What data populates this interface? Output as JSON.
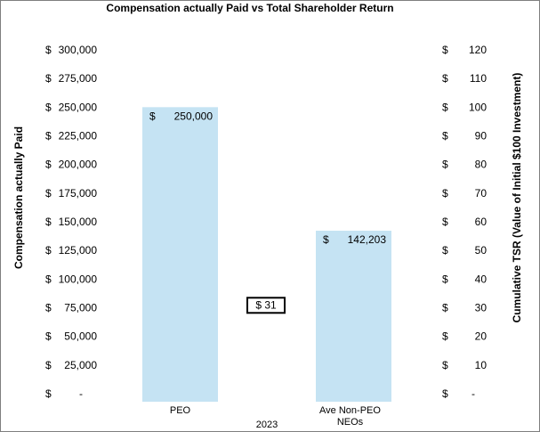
{
  "chart_data": {
    "type": "bar",
    "title": "Compensation actually Paid vs Total Shareholder Return",
    "ylabel": "Compensation actually Paid",
    "y2label": "Cumulative TSR  (Value of Initial $100 Investment)",
    "group_label": "2023",
    "categories": [
      "PEO",
      "Ave Non-PEO NEOs"
    ],
    "category_lines": [
      [
        "PEO"
      ],
      [
        "Ave Non-PEO",
        "NEOs"
      ]
    ],
    "values": [
      250000,
      142203
    ],
    "value_labels": [
      {
        "currency": "$",
        "amount": "250,000"
      },
      {
        "currency": "$",
        "amount": "142,203"
      }
    ],
    "bar_color": "#c5e3f3",
    "ylim": [
      0,
      300000
    ],
    "y_ticks": [
      {
        "value": 0,
        "currency": "$",
        "amount": "-"
      },
      {
        "value": 25000,
        "currency": "$",
        "amount": "25,000"
      },
      {
        "value": 50000,
        "currency": "$",
        "amount": "50,000"
      },
      {
        "value": 75000,
        "currency": "$",
        "amount": "75,000"
      },
      {
        "value": 100000,
        "currency": "$",
        "amount": "100,000"
      },
      {
        "value": 125000,
        "currency": "$",
        "amount": "125,000"
      },
      {
        "value": 150000,
        "currency": "$",
        "amount": "150,000"
      },
      {
        "value": 175000,
        "currency": "$",
        "amount": "175,000"
      },
      {
        "value": 200000,
        "currency": "$",
        "amount": "200,000"
      },
      {
        "value": 225000,
        "currency": "$",
        "amount": "225,000"
      },
      {
        "value": 250000,
        "currency": "$",
        "amount": "250,000"
      },
      {
        "value": 275000,
        "currency": "$",
        "amount": "275,000"
      },
      {
        "value": 300000,
        "currency": "$",
        "amount": "300,000"
      }
    ],
    "y2lim": [
      0,
      120
    ],
    "y2_ticks": [
      {
        "value": 0,
        "currency": "$",
        "amount": "-"
      },
      {
        "value": 10,
        "currency": "$",
        "amount": "10"
      },
      {
        "value": 20,
        "currency": "$",
        "amount": "20"
      },
      {
        "value": 30,
        "currency": "$",
        "amount": "30"
      },
      {
        "value": 40,
        "currency": "$",
        "amount": "40"
      },
      {
        "value": 50,
        "currency": "$",
        "amount": "50"
      },
      {
        "value": 60,
        "currency": "$",
        "amount": "60"
      },
      {
        "value": 70,
        "currency": "$",
        "amount": "70"
      },
      {
        "value": 80,
        "currency": "$",
        "amount": "80"
      },
      {
        "value": 90,
        "currency": "$",
        "amount": "90"
      },
      {
        "value": 100,
        "currency": "$",
        "amount": "100"
      },
      {
        "value": 110,
        "currency": "$",
        "amount": "110"
      },
      {
        "value": 120,
        "currency": "$",
        "amount": "120"
      }
    ],
    "tsr": {
      "value": 31,
      "label": "$  31"
    },
    "grid": false,
    "legend": "none"
  }
}
